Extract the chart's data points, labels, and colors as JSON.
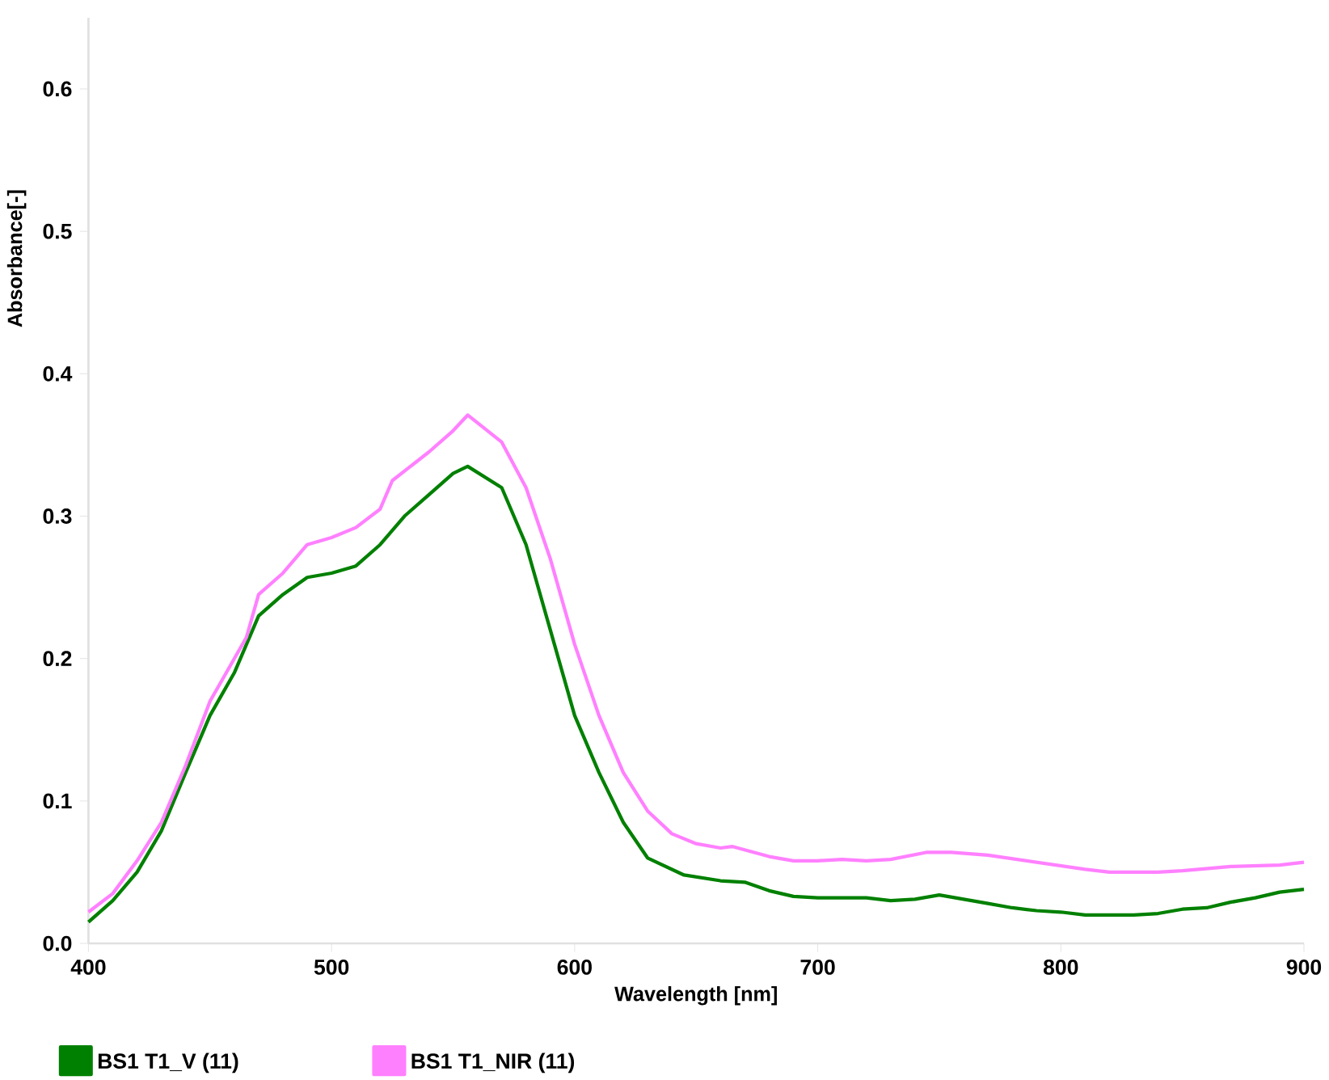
{
  "chart_data": {
    "type": "line",
    "xlabel": "Wavelength [nm]",
    "ylabel": "Absorbance[-]",
    "xlim": [
      400,
      900
    ],
    "ylim": [
      0,
      0.65
    ],
    "xticks": [
      400,
      500,
      600,
      700,
      800,
      900
    ],
    "yticks": [
      {
        "value": 0,
        "label": "0.0"
      },
      0.1,
      0.2,
      0.3,
      0.4,
      0.5,
      0.6
    ],
    "legend": "bottom left",
    "series": [
      {
        "name": "BS1 T1_V (11)",
        "color": "#008000",
        "x": [
          400,
          410,
          420,
          430,
          440,
          450,
          460,
          465,
          470,
          480,
          490,
          500,
          510,
          520,
          530,
          540,
          550,
          556,
          570,
          580,
          590,
          600,
          610,
          620,
          630,
          645,
          660,
          670,
          680,
          690,
          700,
          720,
          730,
          740,
          750,
          760,
          770,
          780,
          790,
          800,
          810,
          830,
          840,
          850,
          860,
          870,
          880,
          890,
          900
        ],
        "values": [
          0.015,
          0.03,
          0.05,
          0.079,
          0.12,
          0.16,
          0.19,
          0.21,
          0.23,
          0.245,
          0.257,
          0.26,
          0.265,
          0.28,
          0.3,
          0.315,
          0.33,
          0.335,
          0.32,
          0.28,
          0.22,
          0.16,
          0.12,
          0.085,
          0.06,
          0.048,
          0.044,
          0.043,
          0.037,
          0.033,
          0.032,
          0.032,
          0.03,
          0.031,
          0.034,
          0.031,
          0.028,
          0.025,
          0.023,
          0.022,
          0.02,
          0.02,
          0.021,
          0.024,
          0.025,
          0.029,
          0.032,
          0.036,
          0.038
        ]
      },
      {
        "name": "BS1 T1_NIR (11)",
        "color": "#ff80ff",
        "x": [
          400,
          410,
          420,
          430,
          440,
          450,
          460,
          465,
          470,
          480,
          490,
          500,
          510,
          520,
          525,
          540,
          550,
          556,
          570,
          580,
          590,
          600,
          610,
          620,
          630,
          640,
          650,
          660,
          665,
          680,
          690,
          700,
          710,
          720,
          730,
          745,
          755,
          770,
          790,
          810,
          820,
          840,
          850,
          870,
          890,
          900
        ],
        "values": [
          0.022,
          0.035,
          0.058,
          0.085,
          0.125,
          0.17,
          0.2,
          0.215,
          0.245,
          0.26,
          0.28,
          0.285,
          0.292,
          0.305,
          0.325,
          0.345,
          0.36,
          0.371,
          0.352,
          0.32,
          0.27,
          0.21,
          0.16,
          0.12,
          0.093,
          0.077,
          0.07,
          0.067,
          0.068,
          0.061,
          0.058,
          0.058,
          0.059,
          0.058,
          0.059,
          0.064,
          0.064,
          0.062,
          0.057,
          0.052,
          0.05,
          0.05,
          0.051,
          0.054,
          0.055,
          0.057
        ]
      }
    ]
  }
}
